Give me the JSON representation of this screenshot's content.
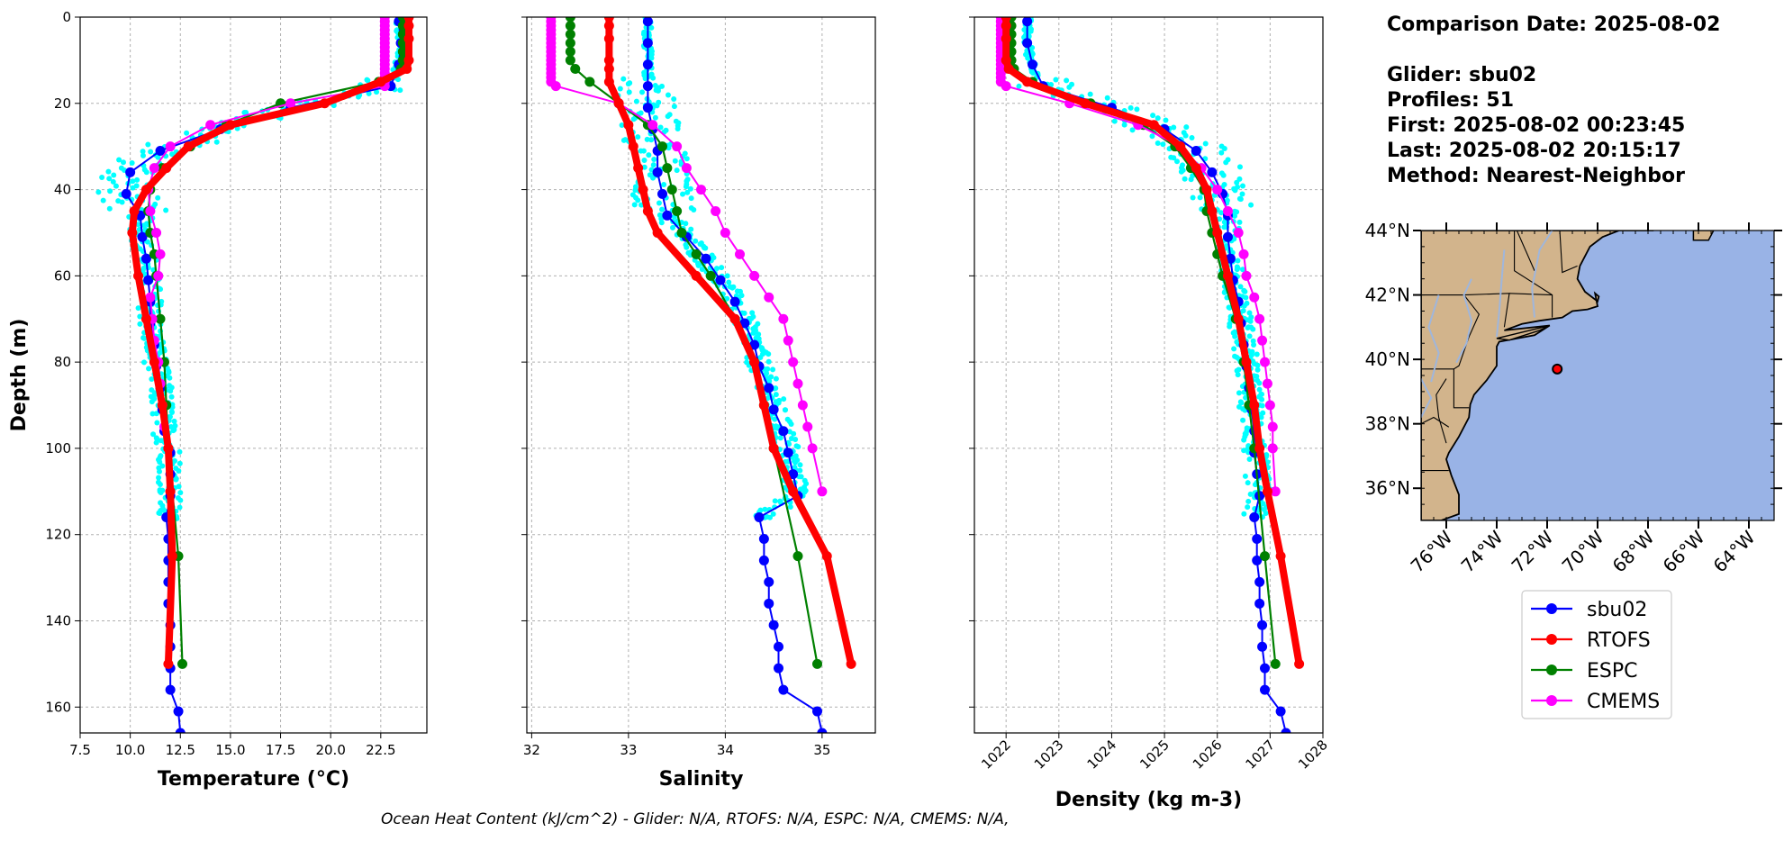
{
  "info": {
    "comparison_date": "Comparison Date: 2025-08-02",
    "glider": "Glider: sbu02",
    "profiles": "Profiles: 51",
    "first": "First: 2025-08-02 00:23:45",
    "last": "Last: 2025-08-02 20:15:17",
    "method": "Method: Nearest-Neighbor"
  },
  "footer": "Ocean Heat Content (kJ/cm^2) - Glider: N/A,  RTOFS: N/A,  ESPC: N/A,  CMEMS: N/A,",
  "colors": {
    "glider_scatter": "#00ffff",
    "sbu02": "#0000ff",
    "RTOFS": "#ff0000",
    "ESPC": "#008000",
    "CMEMS": "#ff00ff",
    "ocean": "#99b3e6",
    "land": "#d2b48c",
    "grid": "#b0b0b0"
  },
  "legend": [
    {
      "name": "sbu02",
      "color": "#0000ff"
    },
    {
      "name": "RTOFS",
      "color": "#ff0000"
    },
    {
      "name": "ESPC",
      "color": "#008000"
    },
    {
      "name": "CMEMS",
      "color": "#ff00ff"
    }
  ],
  "map": {
    "lat_labels": [
      "44°N",
      "42°N",
      "40°N",
      "38°N",
      "36°N"
    ],
    "lat_values": [
      44,
      42,
      40,
      38,
      36
    ],
    "lon_labels": [
      "76°W",
      "74°W",
      "72°W",
      "70°W",
      "68°W",
      "66°W",
      "64°W"
    ],
    "lon_values": [
      -76,
      -74,
      -72,
      -70,
      -68,
      -66,
      -64
    ],
    "lon_range": [
      -77,
      -63
    ],
    "lat_range": [
      35,
      44
    ],
    "glider_position": {
      "lon": -71.6,
      "lat": 39.7
    }
  },
  "chart_data": [
    {
      "type": "line",
      "xlabel": "Temperature (°C)",
      "ylabel": "Depth (m)",
      "xlim": [
        7.5,
        24.8
      ],
      "ylim": [
        166,
        0
      ],
      "xticks": [
        "7.5",
        "10.0",
        "12.5",
        "15.0",
        "17.5",
        "20.0",
        "22.5"
      ],
      "xtick_values": [
        7.5,
        10.0,
        12.5,
        15.0,
        17.5,
        20.0,
        22.5
      ],
      "yticks": [
        "0",
        "20",
        "40",
        "60",
        "80",
        "100",
        "120",
        "140",
        "160"
      ],
      "ytick_values": [
        0,
        20,
        40,
        60,
        80,
        100,
        120,
        140,
        160
      ],
      "series": [
        {
          "name": "sbu02",
          "depth": [
            1,
            6,
            11,
            16,
            21,
            26,
            31,
            36,
            41,
            46,
            51,
            56,
            61,
            66,
            71,
            76,
            81,
            86,
            91,
            96,
            101,
            106,
            111,
            116,
            121,
            126,
            131,
            136,
            141,
            146,
            151,
            156,
            161,
            166
          ],
          "values": [
            23.4,
            23.5,
            23.4,
            23.0,
            18.0,
            14.5,
            11.5,
            10.0,
            9.8,
            10.5,
            10.6,
            10.8,
            10.9,
            11.0,
            11.0,
            11.2,
            11.3,
            11.5,
            11.6,
            11.7,
            12.0,
            12.0,
            12.0,
            11.8,
            11.9,
            11.9,
            11.9,
            11.9,
            12.0,
            12.0,
            12.0,
            12.0,
            12.4,
            12.5
          ]
        },
        {
          "name": "RTOFS",
          "depth": [
            0,
            2,
            5,
            10,
            12,
            15,
            20,
            25,
            30,
            35,
            40,
            45,
            50,
            60,
            70,
            80,
            90,
            100,
            110,
            125,
            150
          ],
          "values": [
            23.9,
            23.9,
            23.9,
            23.9,
            23.8,
            22.5,
            19.7,
            15.0,
            12.9,
            11.8,
            10.8,
            10.2,
            10.1,
            10.4,
            10.8,
            11.2,
            11.6,
            11.9,
            12.0,
            12.1,
            11.9
          ]
        },
        {
          "name": "ESPC",
          "depth": [
            0,
            2,
            4,
            6,
            8,
            10,
            12,
            15,
            20,
            25,
            30,
            35,
            40,
            45,
            50,
            55,
            60,
            70,
            80,
            90,
            100,
            125,
            150
          ],
          "values": [
            23.6,
            23.6,
            23.6,
            23.6,
            23.6,
            23.6,
            23.5,
            22.4,
            17.5,
            14.8,
            13.0,
            11.6,
            11.0,
            10.9,
            11.0,
            11.2,
            11.3,
            11.5,
            11.7,
            11.8,
            11.9,
            12.4,
            12.6
          ]
        },
        {
          "name": "CMEMS",
          "depth": [
            0,
            1,
            2,
            3,
            4,
            5,
            6,
            7,
            8,
            9,
            10,
            11,
            12,
            13,
            14,
            15,
            16,
            20,
            25,
            30,
            35,
            40,
            45,
            50,
            55,
            60,
            65,
            70,
            75,
            80,
            85,
            90,
            95,
            100,
            110
          ],
          "values": [
            22.7,
            22.7,
            22.7,
            22.7,
            22.7,
            22.7,
            22.7,
            22.7,
            22.7,
            22.7,
            22.7,
            22.7,
            22.7,
            22.7,
            22.7,
            22.7,
            22.7,
            18.0,
            14.0,
            12.0,
            11.2,
            10.9,
            11.0,
            11.3,
            11.5,
            11.4,
            11.0,
            11.1,
            11.2,
            11.4,
            11.5,
            11.6,
            11.7,
            11.9,
            12.0
          ]
        }
      ]
    },
    {
      "type": "line",
      "xlabel": "Salinity",
      "ylabel": "",
      "xlim": [
        31.95,
        35.55
      ],
      "ylim": [
        166,
        0
      ],
      "xticks": [
        "32",
        "33",
        "34",
        "35"
      ],
      "xtick_values": [
        32,
        33,
        34,
        35
      ],
      "series": [
        {
          "name": "sbu02",
          "depth": [
            1,
            6,
            11,
            16,
            21,
            26,
            31,
            36,
            41,
            46,
            51,
            56,
            61,
            66,
            71,
            76,
            81,
            86,
            91,
            96,
            101,
            106,
            111,
            116,
            121,
            126,
            131,
            136,
            141,
            146,
            151,
            156,
            161,
            166
          ],
          "values": [
            33.2,
            33.2,
            33.2,
            33.2,
            33.2,
            33.25,
            33.3,
            33.3,
            33.35,
            33.4,
            33.6,
            33.8,
            33.95,
            34.1,
            34.2,
            34.3,
            34.35,
            34.45,
            34.5,
            34.6,
            34.65,
            34.7,
            34.75,
            34.35,
            34.4,
            34.4,
            34.45,
            34.45,
            34.5,
            34.55,
            34.55,
            34.6,
            34.95,
            35.0
          ]
        },
        {
          "name": "RTOFS",
          "depth": [
            0,
            2,
            5,
            10,
            12,
            15,
            20,
            25,
            30,
            35,
            40,
            45,
            50,
            60,
            70,
            80,
            90,
            100,
            110,
            125,
            150
          ],
          "values": [
            32.8,
            32.8,
            32.8,
            32.8,
            32.8,
            32.8,
            32.9,
            33.0,
            33.05,
            33.1,
            33.15,
            33.2,
            33.3,
            33.7,
            34.1,
            34.3,
            34.4,
            34.5,
            34.7,
            35.05,
            35.3
          ]
        },
        {
          "name": "ESPC",
          "depth": [
            0,
            2,
            4,
            6,
            8,
            10,
            12,
            15,
            20,
            25,
            30,
            35,
            40,
            45,
            50,
            55,
            60,
            70,
            80,
            90,
            100,
            125,
            150
          ],
          "values": [
            32.4,
            32.4,
            32.4,
            32.4,
            32.4,
            32.4,
            32.45,
            32.6,
            32.9,
            33.2,
            33.35,
            33.4,
            33.45,
            33.5,
            33.55,
            33.7,
            33.85,
            34.1,
            34.3,
            34.4,
            34.5,
            34.75,
            34.95
          ]
        },
        {
          "name": "CMEMS",
          "depth": [
            0,
            1,
            2,
            3,
            4,
            5,
            6,
            7,
            8,
            9,
            10,
            11,
            12,
            13,
            14,
            15,
            16,
            20,
            25,
            30,
            35,
            40,
            45,
            50,
            55,
            60,
            65,
            70,
            75,
            80,
            85,
            90,
            95,
            100,
            110
          ],
          "values": [
            32.2,
            32.2,
            32.2,
            32.2,
            32.2,
            32.2,
            32.2,
            32.2,
            32.2,
            32.2,
            32.2,
            32.2,
            32.2,
            32.2,
            32.2,
            32.2,
            32.25,
            32.9,
            33.25,
            33.5,
            33.6,
            33.75,
            33.9,
            34.0,
            34.15,
            34.3,
            34.45,
            34.6,
            34.65,
            34.7,
            34.75,
            34.8,
            34.85,
            34.9,
            35.0
          ]
        }
      ]
    },
    {
      "type": "line",
      "xlabel": "Density (kg m-3)",
      "ylabel": "",
      "xlim": [
        1021.4,
        1028.0
      ],
      "ylim": [
        166,
        0
      ],
      "xticks": [
        "1022",
        "1023",
        "1024",
        "1025",
        "1026",
        "1027",
        "1028"
      ],
      "xtick_values": [
        1022,
        1023,
        1024,
        1025,
        1026,
        1027,
        1028
      ],
      "series": [
        {
          "name": "sbu02",
          "depth": [
            1,
            6,
            11,
            16,
            21,
            26,
            31,
            36,
            41,
            46,
            51,
            56,
            61,
            66,
            71,
            76,
            81,
            86,
            91,
            96,
            101,
            106,
            111,
            116,
            121,
            126,
            131,
            136,
            141,
            146,
            151,
            156,
            161,
            166
          ],
          "values": [
            1022.4,
            1022.4,
            1022.5,
            1022.7,
            1024.0,
            1025.0,
            1025.6,
            1025.9,
            1026.1,
            1026.2,
            1026.2,
            1026.25,
            1026.3,
            1026.4,
            1026.45,
            1026.5,
            1026.55,
            1026.6,
            1026.65,
            1026.7,
            1026.7,
            1026.75,
            1026.8,
            1026.7,
            1026.75,
            1026.75,
            1026.8,
            1026.8,
            1026.85,
            1026.85,
            1026.9,
            1026.9,
            1027.2,
            1027.3
          ]
        },
        {
          "name": "RTOFS",
          "depth": [
            0,
            2,
            5,
            10,
            12,
            15,
            20,
            25,
            30,
            35,
            40,
            45,
            50,
            60,
            70,
            80,
            90,
            100,
            110,
            125,
            150
          ],
          "values": [
            1022.0,
            1022.0,
            1022.0,
            1022.0,
            1022.05,
            1022.4,
            1023.5,
            1024.8,
            1025.3,
            1025.6,
            1025.8,
            1025.9,
            1026.0,
            1026.2,
            1026.4,
            1026.55,
            1026.7,
            1026.8,
            1026.95,
            1027.2,
            1027.55
          ]
        },
        {
          "name": "ESPC",
          "depth": [
            0,
            2,
            4,
            6,
            8,
            10,
            12,
            15,
            20,
            25,
            30,
            35,
            40,
            45,
            50,
            55,
            60,
            70,
            80,
            90,
            100,
            125,
            150
          ],
          "values": [
            1022.1,
            1022.1,
            1022.1,
            1022.1,
            1022.1,
            1022.1,
            1022.15,
            1022.5,
            1023.6,
            1024.6,
            1025.2,
            1025.5,
            1025.75,
            1025.8,
            1025.9,
            1026.0,
            1026.1,
            1026.35,
            1026.5,
            1026.6,
            1026.7,
            1026.9,
            1027.1
          ]
        },
        {
          "name": "CMEMS",
          "depth": [
            0,
            1,
            2,
            3,
            4,
            5,
            6,
            7,
            8,
            9,
            10,
            11,
            12,
            13,
            14,
            15,
            16,
            20,
            25,
            30,
            35,
            40,
            45,
            50,
            55,
            60,
            65,
            70,
            75,
            80,
            85,
            90,
            95,
            100,
            110
          ],
          "values": [
            1021.9,
            1021.9,
            1021.9,
            1021.9,
            1021.9,
            1021.9,
            1021.9,
            1021.9,
            1021.9,
            1021.9,
            1021.9,
            1021.9,
            1021.9,
            1021.9,
            1021.9,
            1021.9,
            1022.0,
            1023.2,
            1024.5,
            1025.3,
            1025.7,
            1026.0,
            1026.2,
            1026.4,
            1026.5,
            1026.55,
            1026.7,
            1026.8,
            1026.85,
            1026.9,
            1026.95,
            1027.0,
            1027.05,
            1027.05,
            1027.1
          ]
        }
      ]
    }
  ]
}
